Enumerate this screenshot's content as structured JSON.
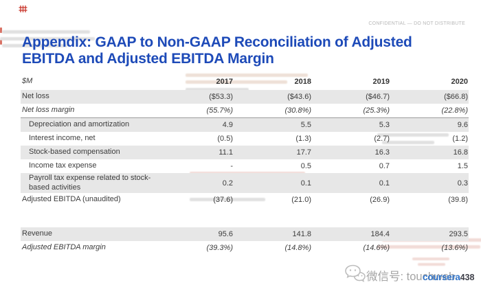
{
  "slide": {
    "confidential_label": "CONFIDENTIAL — DO NOT DISTRIBUTE",
    "title_line1": "Appendix: GAAP to Non-GAAP Reconciliation of Adjusted",
    "title_line2": "EBITDA and Adjusted EBITDA Margin"
  },
  "table": {
    "unit_label": "$M",
    "years": [
      "2017",
      "2018",
      "2019",
      "2020"
    ],
    "rows": [
      {
        "label": "Net loss",
        "values": [
          "($53.3)",
          "($43.6)",
          "($46.7)",
          "($66.8)"
        ],
        "shaded": true
      },
      {
        "label": "Net loss margin",
        "values": [
          "(55.7%)",
          "(30.8%)",
          "(25.3%)",
          "(22.8%)"
        ],
        "italic": true,
        "divider": true
      },
      {
        "label": "Depreciation and amortization",
        "values": [
          "4.9",
          "5.5",
          "5.3",
          "9.6"
        ],
        "shaded": true,
        "indent": true
      },
      {
        "label": "Interest income, net",
        "values": [
          "(0.5)",
          "(1.3)",
          "(2.7)",
          "(1.2)"
        ],
        "indent": true
      },
      {
        "label": "Stock-based compensation",
        "values": [
          "11.1",
          "17.7",
          "16.3",
          "16.8"
        ],
        "shaded": true,
        "indent": true
      },
      {
        "label": "Income tax expense",
        "values": [
          "-",
          "0.5",
          "0.7",
          "1.5"
        ],
        "indent": true
      },
      {
        "label": "Payroll tax expense related to stock-based activities",
        "values": [
          "0.2",
          "0.1",
          "0.1",
          "0.3"
        ],
        "shaded": true,
        "indent": true,
        "tall": true
      },
      {
        "label": "Adjusted EBITDA (unaudited)",
        "values": [
          "(37.6)",
          "(21.0)",
          "(26.9)",
          "(39.8)"
        ]
      },
      {
        "spacer": true
      },
      {
        "label": "Revenue",
        "values": [
          "95.6",
          "141.8",
          "184.4",
          "293.5"
        ],
        "shaded": true
      },
      {
        "label": "Adjusted EBITDA margin",
        "values": [
          "(39.3%)",
          "(14.8%)",
          "(14.6%)",
          "(13.6%)"
        ],
        "italic": true
      }
    ]
  },
  "footer": {
    "wechat_label": "微信号: touchweb",
    "brand_text": "coursera",
    "brand_number": "438"
  },
  "colors": {
    "title_blue": "#1d4ab8",
    "row_shade": "#e7e7e7",
    "divider_gray": "#9b9b9b",
    "confidential_gray": "#b7b7b7",
    "brand_blue": "#2f73c9",
    "watermark_red": "#c9372c"
  },
  "chart_data": {
    "type": "table",
    "title": "Appendix: GAAP to Non-GAAP Reconciliation of Adjusted EBITDA and Adjusted EBITDA Margin",
    "unit": "$M",
    "columns": [
      "2017",
      "2018",
      "2019",
      "2020"
    ],
    "rows": [
      {
        "label": "Net loss",
        "values": [
          -53.3,
          -43.6,
          -46.7,
          -66.8
        ]
      },
      {
        "label": "Net loss margin (%)",
        "values": [
          -55.7,
          -30.8,
          -25.3,
          -22.8
        ]
      },
      {
        "label": "Depreciation and amortization",
        "values": [
          4.9,
          5.5,
          5.3,
          9.6
        ]
      },
      {
        "label": "Interest income, net",
        "values": [
          -0.5,
          -1.3,
          -2.7,
          -1.2
        ]
      },
      {
        "label": "Stock-based compensation",
        "values": [
          11.1,
          17.7,
          16.3,
          16.8
        ]
      },
      {
        "label": "Income tax expense",
        "values": [
          null,
          0.5,
          0.7,
          1.5
        ]
      },
      {
        "label": "Payroll tax expense related to stock-based activities",
        "values": [
          0.2,
          0.1,
          0.1,
          0.3
        ]
      },
      {
        "label": "Adjusted EBITDA (unaudited)",
        "values": [
          -37.6,
          -21.0,
          -26.9,
          -39.8
        ]
      },
      {
        "label": "Revenue",
        "values": [
          95.6,
          141.8,
          184.4,
          293.5
        ]
      },
      {
        "label": "Adjusted EBITDA margin (%)",
        "values": [
          -39.3,
          -14.8,
          -14.6,
          -13.6
        ]
      }
    ]
  }
}
